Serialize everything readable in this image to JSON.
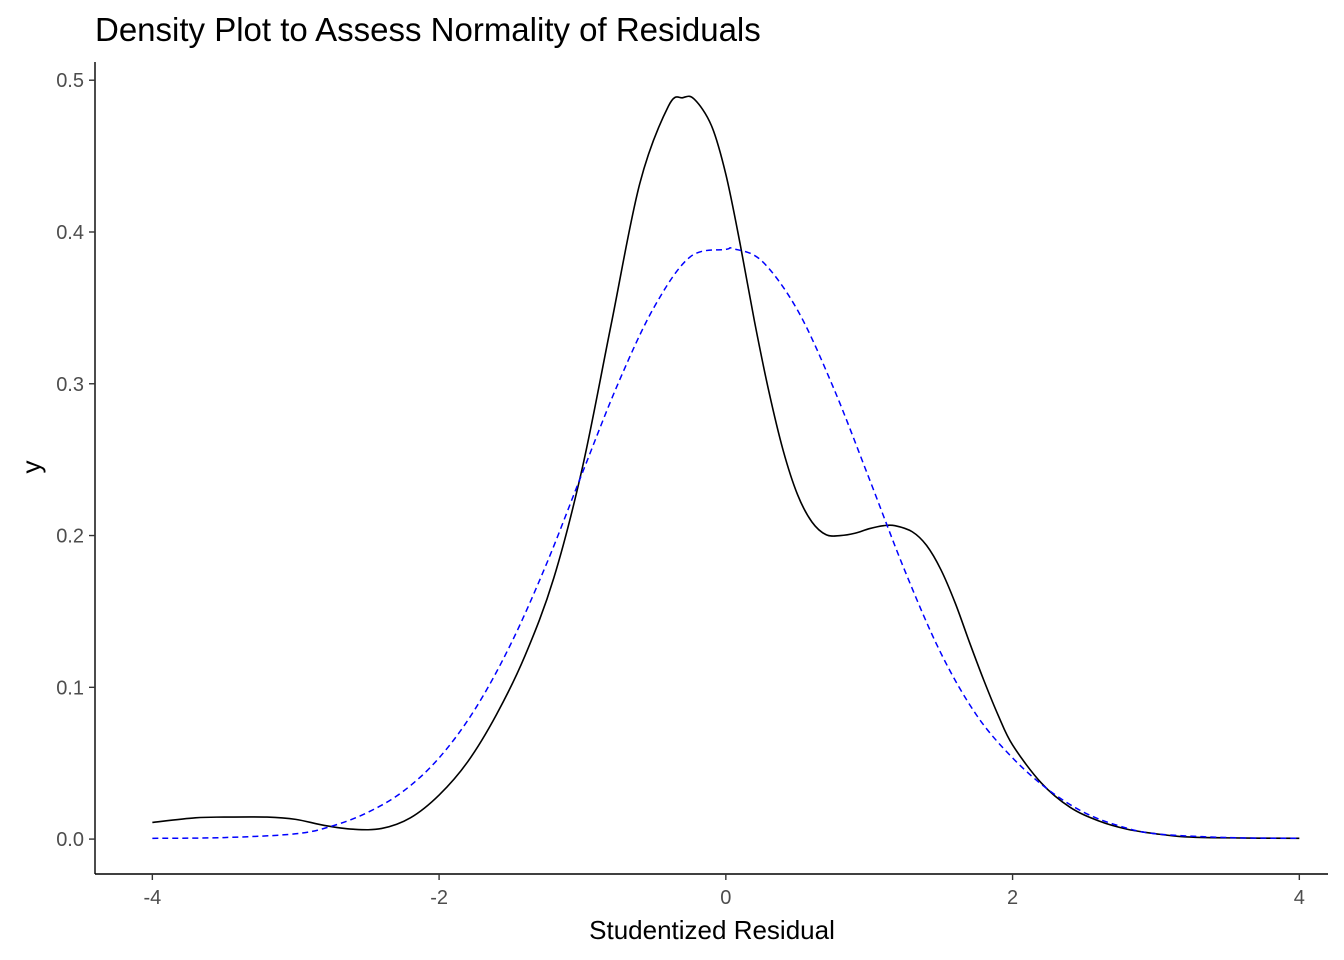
{
  "chart_data": {
    "type": "line",
    "title": "Density Plot to Assess Normality of Residuals",
    "xlabel": "Studentized Residual",
    "ylabel": "y",
    "xlim": [
      -4.4,
      4.2
    ],
    "ylim": [
      -0.023,
      0.512
    ],
    "xticks": [
      -4,
      -2,
      0,
      2,
      4
    ],
    "xtick_labels": [
      "-4",
      "-2",
      "0",
      "2",
      "4"
    ],
    "yticks": [
      0.0,
      0.1,
      0.2,
      0.3,
      0.4,
      0.5
    ],
    "ytick_labels": [
      "0.0",
      "0.1",
      "0.2",
      "0.3",
      "0.4",
      "0.5"
    ],
    "grid": false,
    "legend": "none",
    "series": [
      {
        "style": "solid",
        "color": "#000000",
        "x": [
          -4.0,
          -3.7,
          -3.5,
          -3.2,
          -3.0,
          -2.8,
          -2.6,
          -2.4,
          -2.2,
          -2.0,
          -1.8,
          -1.6,
          -1.4,
          -1.2,
          -1.0,
          -0.8,
          -0.6,
          -0.4,
          -0.3,
          -0.22,
          -0.1,
          0.0,
          0.1,
          0.2,
          0.3,
          0.4,
          0.5,
          0.6,
          0.7,
          0.8,
          0.9,
          1.0,
          1.1,
          1.18,
          1.3,
          1.4,
          1.5,
          1.6,
          1.7,
          1.8,
          1.9,
          2.0,
          2.2,
          2.4,
          2.6,
          2.8,
          3.0,
          3.2,
          3.5,
          4.0
        ],
        "y": [
          0.011,
          0.014,
          0.0145,
          0.0145,
          0.013,
          0.009,
          0.0065,
          0.007,
          0.014,
          0.029,
          0.051,
          0.082,
          0.121,
          0.172,
          0.245,
          0.339,
          0.432,
          0.483,
          0.4885,
          0.4875,
          0.47,
          0.438,
          0.392,
          0.341,
          0.295,
          0.256,
          0.227,
          0.209,
          0.2005,
          0.2,
          0.2015,
          0.2045,
          0.2065,
          0.2065,
          0.2025,
          0.1935,
          0.1775,
          0.1555,
          0.1295,
          0.1045,
          0.0815,
          0.062,
          0.037,
          0.021,
          0.012,
          0.0065,
          0.0035,
          0.0015,
          0.0008,
          0.0005
        ]
      },
      {
        "style": "dashed",
        "color": "#0000ff",
        "x": [
          -4.0,
          -3.5,
          -3.0,
          -2.75,
          -2.5,
          -2.25,
          -2.0,
          -1.75,
          -1.5,
          -1.25,
          -1.0,
          -0.75,
          -0.5,
          -0.25,
          0.0,
          0.05,
          0.25,
          0.5,
          0.75,
          1.0,
          1.25,
          1.5,
          1.75,
          2.0,
          2.25,
          2.5,
          2.75,
          3.0,
          3.5,
          4.0
        ],
        "y": [
          0.0005,
          0.001,
          0.0035,
          0.0085,
          0.0175,
          0.0315,
          0.0535,
          0.0855,
          0.1285,
          0.1815,
          0.2415,
          0.3005,
          0.3505,
          0.3835,
          0.3885,
          0.389,
          0.381,
          0.3485,
          0.2975,
          0.2375,
          0.1765,
          0.1225,
          0.0815,
          0.0535,
          0.0325,
          0.0175,
          0.0085,
          0.0035,
          0.001,
          0.0005
        ]
      }
    ]
  }
}
